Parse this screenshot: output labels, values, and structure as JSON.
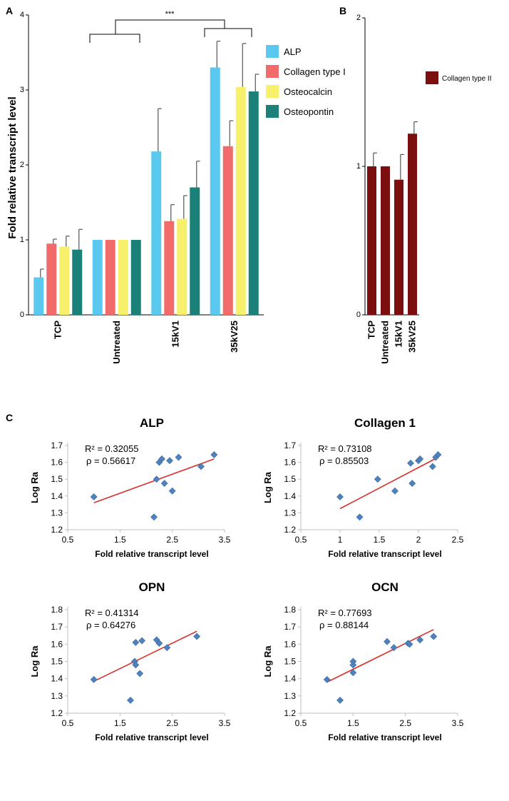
{
  "figure": {
    "panel_labels": {
      "a": "A",
      "b": "B",
      "c": "C"
    },
    "significance": "***"
  },
  "chart_data": [
    {
      "id": "panel-a",
      "type": "bar",
      "title": "",
      "ylabel": "Fold relative transcript level",
      "xlabel": "",
      "ylim": [
        0,
        4
      ],
      "yticks": [
        "0",
        "1",
        "2",
        "3",
        "4"
      ],
      "categories": [
        "TCP",
        "Untreated",
        "15kV1",
        "35kV25"
      ],
      "legend_position": "right",
      "series": [
        {
          "name": "ALP",
          "color": "#5bc8f0",
          "values": [
            0.5,
            1.0,
            2.18,
            3.3
          ],
          "errors": [
            0.11,
            0.0,
            0.57,
            0.35
          ]
        },
        {
          "name": "Collagen type I",
          "color": "#f26b6b",
          "values": [
            0.95,
            1.0,
            1.25,
            2.25
          ],
          "errors": [
            0.06,
            0.0,
            0.22,
            0.34
          ]
        },
        {
          "name": "Osteocalcin",
          "color": "#f7f06b",
          "values": [
            0.91,
            1.0,
            1.28,
            3.04
          ],
          "errors": [
            0.14,
            0.0,
            0.31,
            0.58
          ]
        },
        {
          "name": "Osteopontin",
          "color": "#1b8077",
          "values": [
            0.87,
            1.0,
            1.7,
            2.98
          ],
          "errors": [
            0.27,
            0.0,
            0.35,
            0.23
          ]
        }
      ]
    },
    {
      "id": "panel-b",
      "type": "bar",
      "title": "",
      "ylim": [
        0,
        2
      ],
      "yticks": [
        "0",
        "1",
        "2"
      ],
      "categories": [
        "TCP",
        "Untreated",
        "15kV1",
        "35kV25"
      ],
      "legend_position": "right",
      "series": [
        {
          "name": "Collagen type II",
          "color": "#7b0f10",
          "values": [
            1.0,
            1.0,
            0.91,
            1.22
          ],
          "errors": [
            0.09,
            0.0,
            0.17,
            0.08
          ]
        }
      ]
    },
    {
      "id": "scatter-alp",
      "type": "scatter",
      "title": "ALP",
      "xlabel": "Fold relative transcript level",
      "ylabel": "Log Ra",
      "xlim": [
        0.5,
        3.5
      ],
      "ylim": [
        1.2,
        1.7
      ],
      "xticks": [
        "0.5",
        "1.5",
        "2.5",
        "3.5"
      ],
      "yticks": [
        "1.2",
        "1.3",
        "1.4",
        "1.5",
        "1.6",
        "1.7"
      ],
      "r2": "R² = 0.32055",
      "rho": "ρ = 0.56617",
      "trend": [
        [
          1.0,
          1.36
        ],
        [
          3.3,
          1.62
        ]
      ],
      "points": [
        [
          1.0,
          1.395
        ],
        [
          2.15,
          1.275
        ],
        [
          2.2,
          1.5
        ],
        [
          2.25,
          1.6
        ],
        [
          2.3,
          1.62
        ],
        [
          2.35,
          1.475
        ],
        [
          2.45,
          1.61
        ],
        [
          2.5,
          1.43
        ],
        [
          2.62,
          1.63
        ],
        [
          3.05,
          1.575
        ],
        [
          3.3,
          1.645
        ]
      ]
    },
    {
      "id": "scatter-collagen",
      "type": "scatter",
      "title": "Collagen 1",
      "xlabel": "Fold relative transcript level",
      "ylabel": "Log Ra",
      "xlim": [
        0.5,
        2.5
      ],
      "ylim": [
        1.2,
        1.7
      ],
      "xticks": [
        "0.5",
        "1",
        "1.5",
        "2",
        "2.5"
      ],
      "yticks": [
        "1.2",
        "1.3",
        "1.4",
        "1.5",
        "1.6",
        "1.7"
      ],
      "r2": "R² = 0.73108",
      "rho": "ρ = 0.85503",
      "trend": [
        [
          1.0,
          1.325
        ],
        [
          2.25,
          1.63
        ]
      ],
      "points": [
        [
          1.0,
          1.395
        ],
        [
          1.25,
          1.275
        ],
        [
          1.48,
          1.5
        ],
        [
          1.7,
          1.43
        ],
        [
          1.9,
          1.595
        ],
        [
          1.92,
          1.475
        ],
        [
          2.0,
          1.61
        ],
        [
          2.02,
          1.62
        ],
        [
          2.18,
          1.575
        ],
        [
          2.22,
          1.63
        ],
        [
          2.25,
          1.645
        ]
      ]
    },
    {
      "id": "scatter-opn",
      "type": "scatter",
      "title": "OPN",
      "xlabel": "Fold relative transcript level",
      "ylabel": "Log Ra",
      "xlim": [
        0.5,
        3.5
      ],
      "ylim": [
        1.2,
        1.8
      ],
      "xticks": [
        "0.5",
        "1.5",
        "2.5",
        "3.5"
      ],
      "yticks": [
        "1.2",
        "1.3",
        "1.4",
        "1.5",
        "1.6",
        "1.7",
        "1.8"
      ],
      "r2": "R² = 0.41314",
      "rho": "ρ = 0.64276",
      "trend": [
        [
          1.0,
          1.385
        ],
        [
          2.97,
          1.675
        ]
      ],
      "points": [
        [
          1.0,
          1.395
        ],
        [
          1.7,
          1.275
        ],
        [
          1.78,
          1.5
        ],
        [
          1.8,
          1.48
        ],
        [
          1.8,
          1.61
        ],
        [
          1.88,
          1.43
        ],
        [
          1.92,
          1.62
        ],
        [
          2.2,
          1.625
        ],
        [
          2.25,
          1.605
        ],
        [
          2.4,
          1.58
        ],
        [
          2.97,
          1.645
        ]
      ]
    },
    {
      "id": "scatter-ocn",
      "type": "scatter",
      "title": "OCN",
      "xlabel": "Fold relative transcript level",
      "ylabel": "Log Ra",
      "xlim": [
        0.5,
        3.5
      ],
      "ylim": [
        1.2,
        1.8
      ],
      "xticks": [
        "0.5",
        "1.5",
        "2.5",
        "3.5"
      ],
      "yticks": [
        "1.2",
        "1.3",
        "1.4",
        "1.5",
        "1.6",
        "1.7",
        "1.8"
      ],
      "r2": "R² = 0.77693",
      "rho": "ρ = 0.88144",
      "trend": [
        [
          1.0,
          1.38
        ],
        [
          3.04,
          1.685
        ]
      ],
      "points": [
        [
          1.0,
          1.395
        ],
        [
          1.25,
          1.275
        ],
        [
          1.5,
          1.5
        ],
        [
          1.5,
          1.48
        ],
        [
          1.5,
          1.435
        ],
        [
          2.15,
          1.615
        ],
        [
          2.28,
          1.58
        ],
        [
          2.55,
          1.605
        ],
        [
          2.58,
          1.6
        ],
        [
          2.78,
          1.625
        ],
        [
          3.04,
          1.645
        ]
      ]
    }
  ]
}
